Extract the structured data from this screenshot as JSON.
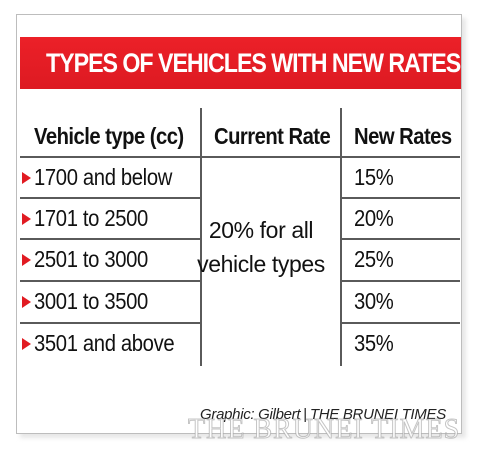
{
  "banner": {
    "title": "TYPES OF VEHICLES WITH NEW RATES",
    "color": "#e11b22"
  },
  "table": {
    "headers": [
      "Vehicle type (cc)",
      "Current Rate",
      "New Rates"
    ],
    "rows": [
      {
        "vehicle_type": "1700 and below",
        "new_rate": "15%"
      },
      {
        "vehicle_type": "1701 to 2500",
        "new_rate": "20%"
      },
      {
        "vehicle_type": "2501 to 3000",
        "new_rate": "25%"
      },
      {
        "vehicle_type": "3001 to 3500",
        "new_rate": "30%"
      },
      {
        "vehicle_type": "3501 and above",
        "new_rate": "35%"
      }
    ],
    "current_rate_line1": "20% for all",
    "current_rate_line2": "vehicle types",
    "row_marker_icon": "red-triangle-bullet"
  },
  "credit": {
    "graphic": "Graphic: Gilbert",
    "separator": "|",
    "publication": "THE BRUNEI TIMES"
  },
  "watermark": "THE BRUNEI TIMES"
}
